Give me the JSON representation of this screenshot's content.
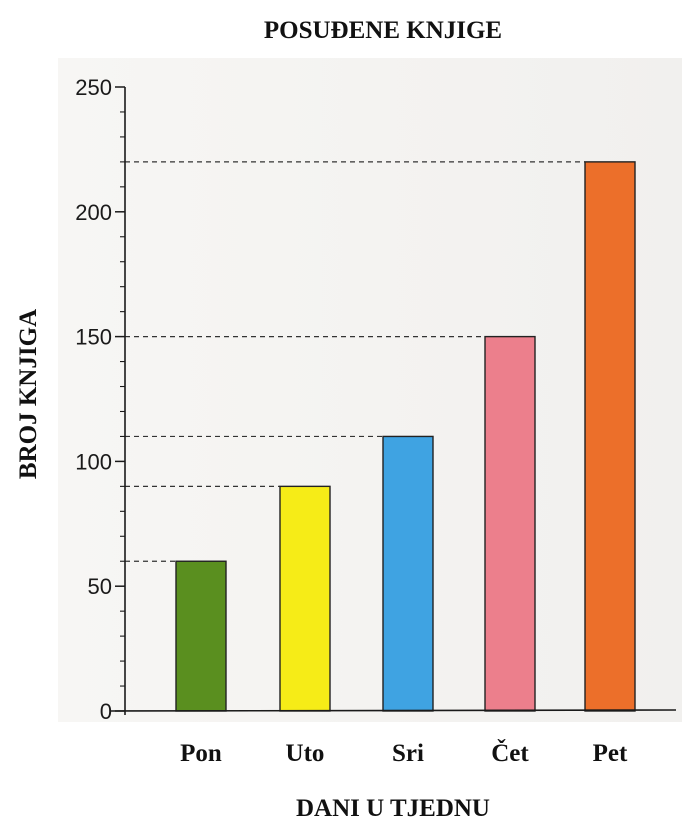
{
  "chart_data": {
    "type": "bar",
    "title": "POSUĐENE KNJIGE",
    "xlabel": "DANI U TJEDNU",
    "ylabel": "BROJ KNJIGA",
    "categories": [
      "Pon",
      "Uto",
      "Sri",
      "Čet",
      "Pet"
    ],
    "values": [
      60,
      90,
      110,
      150,
      220
    ],
    "colors": [
      "#5a8f1f",
      "#f6ec17",
      "#3fa3e2",
      "#ec7f8c",
      "#ec6f2a"
    ],
    "ylim": [
      0,
      250
    ],
    "y_ticks": [
      0,
      50,
      100,
      150,
      200,
      250
    ],
    "y_minor_tick_step": 10,
    "reference_lines": "dashed line from y-axis to top of each bar",
    "grid": false,
    "legend": "none"
  }
}
